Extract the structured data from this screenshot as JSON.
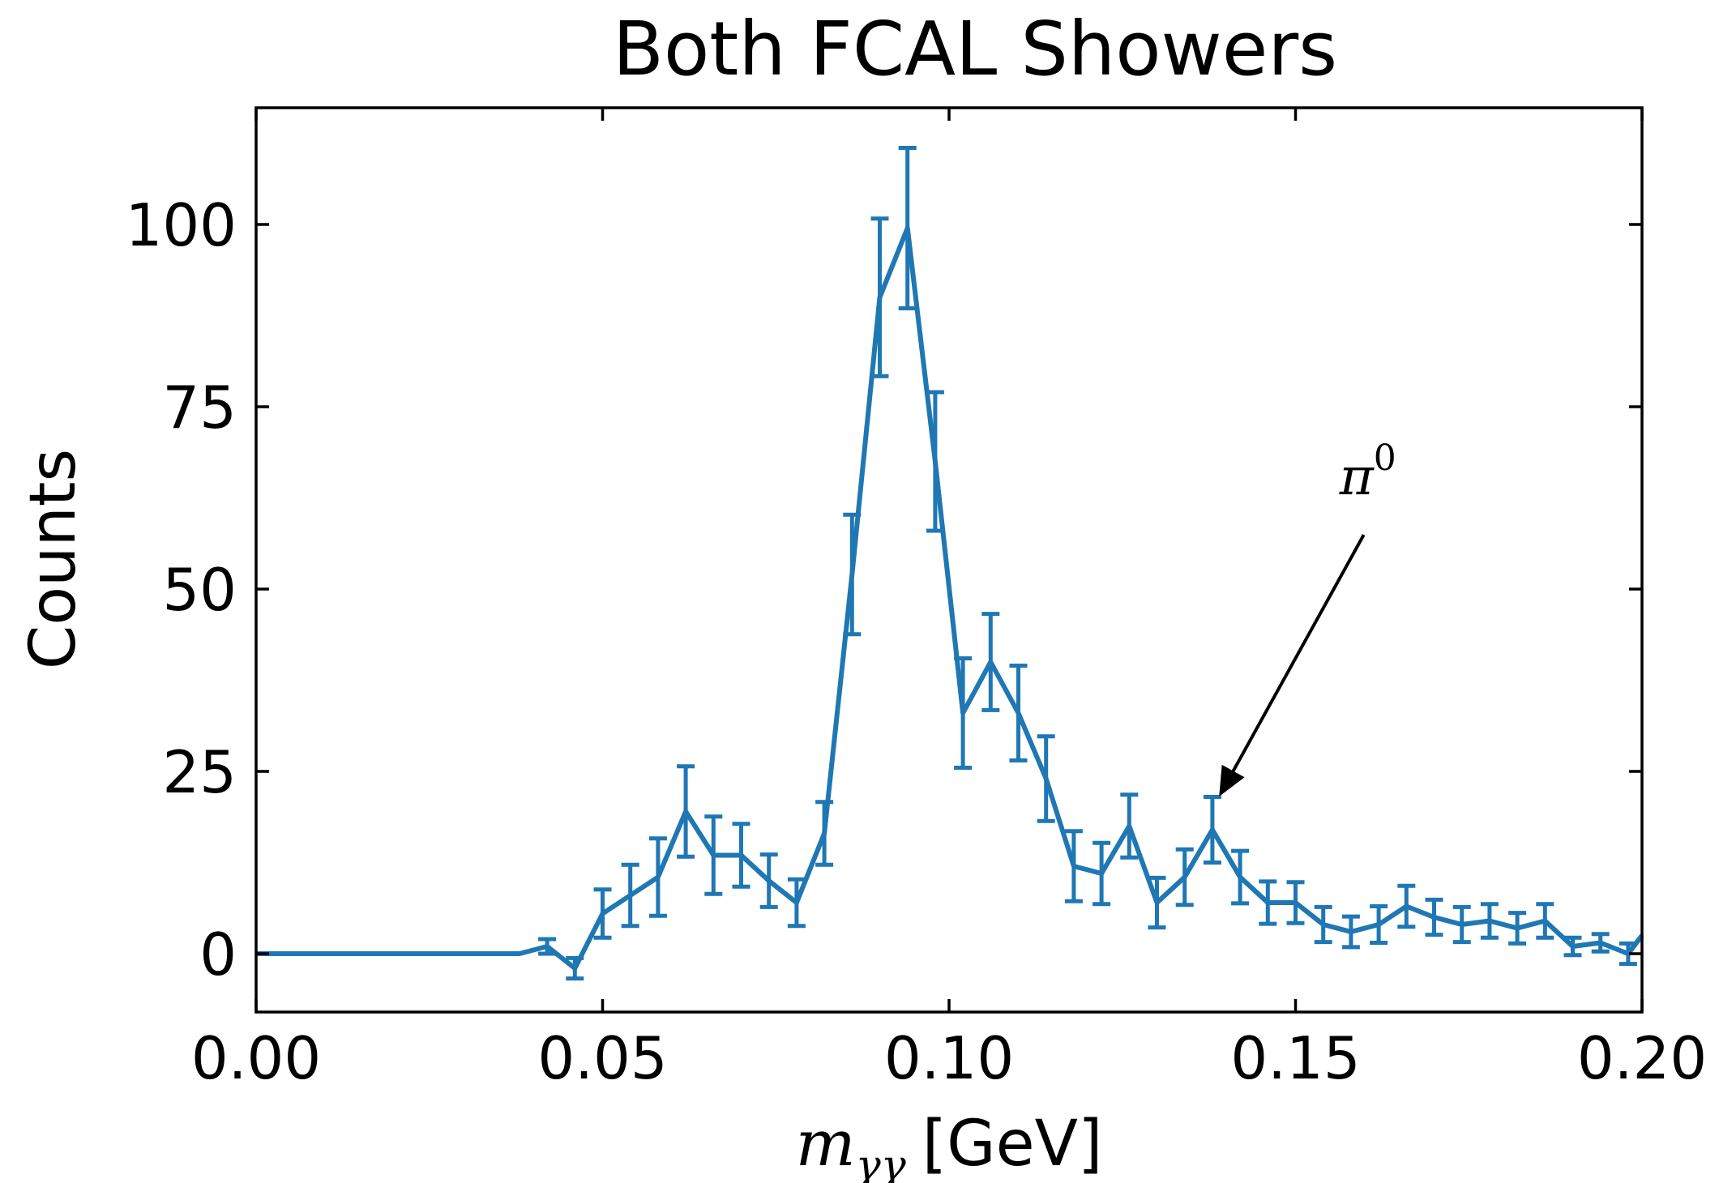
{
  "chart_data": {
    "type": "line",
    "title": "Both FCAL Showers",
    "xlabel": "[GeV]",
    "xlabel_symbol": "m",
    "xlabel_subscript": "γγ",
    "ylabel": "Counts",
    "xlim": [
      0.0,
      0.2
    ],
    "ylim": [
      -8,
      116
    ],
    "xticks": [
      0.0,
      0.05,
      0.1,
      0.15,
      0.2
    ],
    "xtick_labels": [
      "0.00",
      "0.05",
      "0.10",
      "0.15",
      "0.20"
    ],
    "yticks": [
      0,
      25,
      50,
      75,
      100
    ],
    "ytick_labels": [
      "0",
      "25",
      "50",
      "75",
      "100"
    ],
    "grid": false,
    "series_color": "#1f77b4",
    "x": [
      0.0,
      0.002,
      0.006,
      0.01,
      0.014,
      0.018,
      0.022,
      0.026,
      0.03,
      0.034,
      0.038,
      0.042,
      0.046,
      0.05,
      0.054,
      0.058,
      0.062,
      0.066,
      0.07,
      0.074,
      0.078,
      0.082,
      0.086,
      0.09,
      0.094,
      0.098,
      0.102,
      0.106,
      0.11,
      0.114,
      0.118,
      0.122,
      0.126,
      0.13,
      0.134,
      0.138,
      0.142,
      0.146,
      0.15,
      0.154,
      0.158,
      0.162,
      0.166,
      0.17,
      0.174,
      0.178,
      0.182,
      0.186,
      0.19,
      0.194,
      0.198,
      0.2
    ],
    "values": [
      0,
      0,
      0,
      0,
      0,
      0,
      0,
      0,
      0,
      0,
      0,
      1,
      -2,
      5.5,
      8,
      10.5,
      19.5,
      13.5,
      13.5,
      10,
      7,
      16.5,
      52,
      90,
      99.5,
      67.5,
      33,
      40,
      33,
      24,
      12,
      11,
      17.5,
      7,
      10.5,
      17,
      10.5,
      7,
      7,
      4,
      3,
      4,
      6.5,
      5,
      4,
      4.5,
      3.5,
      4.5,
      1,
      1.5,
      0,
      2.5
    ],
    "errors": [
      0,
      0,
      0,
      0,
      0,
      0,
      0,
      0,
      0,
      0,
      0,
      1,
      1.4,
      3.3,
      4.2,
      5.3,
      6.2,
      5.3,
      4.3,
      3.6,
      3.2,
      4.3,
      8.2,
      10.8,
      11,
      9.5,
      7.5,
      6.6,
      6.5,
      5.8,
      4.8,
      4.2,
      4.3,
      3.4,
      3.8,
      4.5,
      3.6,
      2.9,
      2.8,
      2.4,
      2.1,
      2.5,
      2.8,
      2.4,
      2.4,
      2.3,
      2.1,
      2.3,
      1.2,
      1.2,
      1.4,
      0
    ],
    "annotations": [
      {
        "text_symbol": "π",
        "text_superscript": "0",
        "points_to": [
          0.1385,
          22.5
        ],
        "text_at": [
          0.154,
          63
        ]
      }
    ]
  }
}
